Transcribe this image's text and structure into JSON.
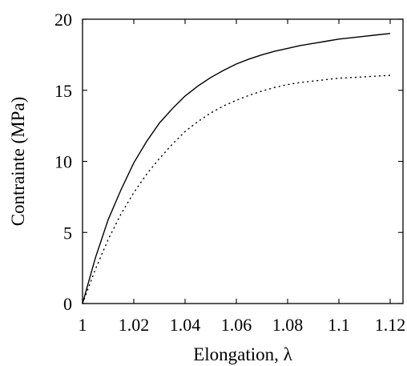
{
  "chart_data": {
    "type": "line",
    "xlabel": "Elongation, λ",
    "ylabel": "Contrainte (MPa)",
    "xlim": [
      1.0,
      1.125
    ],
    "ylim": [
      0,
      20
    ],
    "xticks": [
      1,
      1.02,
      1.04,
      1.06,
      1.08,
      1.1,
      1.12
    ],
    "xtick_labels": [
      "1",
      "1.02",
      "1.04",
      "1.06",
      "1.08",
      "1.1",
      "1.12"
    ],
    "yticks": [
      0,
      5,
      10,
      15,
      20
    ],
    "ytick_labels": [
      "0",
      "5",
      "10",
      "15",
      "20"
    ],
    "grid": false,
    "series": [
      {
        "style": "solid",
        "x": [
          1.0,
          1.005,
          1.01,
          1.015,
          1.02,
          1.025,
          1.03,
          1.035,
          1.04,
          1.045,
          1.05,
          1.055,
          1.06,
          1.065,
          1.07,
          1.075,
          1.08,
          1.085,
          1.09,
          1.095,
          1.1,
          1.105,
          1.11,
          1.115,
          1.12
        ],
        "y": [
          0.0,
          3.2,
          5.9,
          8.0,
          9.9,
          11.4,
          12.7,
          13.7,
          14.6,
          15.3,
          15.9,
          16.4,
          16.85,
          17.2,
          17.5,
          17.75,
          17.95,
          18.15,
          18.3,
          18.45,
          18.6,
          18.7,
          18.8,
          18.9,
          19.0
        ]
      },
      {
        "style": "dotted",
        "x": [
          1.0,
          1.005,
          1.01,
          1.015,
          1.02,
          1.025,
          1.03,
          1.035,
          1.04,
          1.045,
          1.05,
          1.055,
          1.06,
          1.065,
          1.07,
          1.075,
          1.08,
          1.085,
          1.09,
          1.095,
          1.1,
          1.105,
          1.11,
          1.115,
          1.12
        ],
        "y": [
          0.0,
          2.4,
          4.5,
          6.3,
          7.8,
          9.1,
          10.2,
          11.2,
          12.1,
          12.8,
          13.4,
          13.9,
          14.3,
          14.65,
          14.95,
          15.2,
          15.4,
          15.55,
          15.65,
          15.75,
          15.85,
          15.9,
          15.95,
          16.0,
          16.05
        ]
      }
    ]
  }
}
